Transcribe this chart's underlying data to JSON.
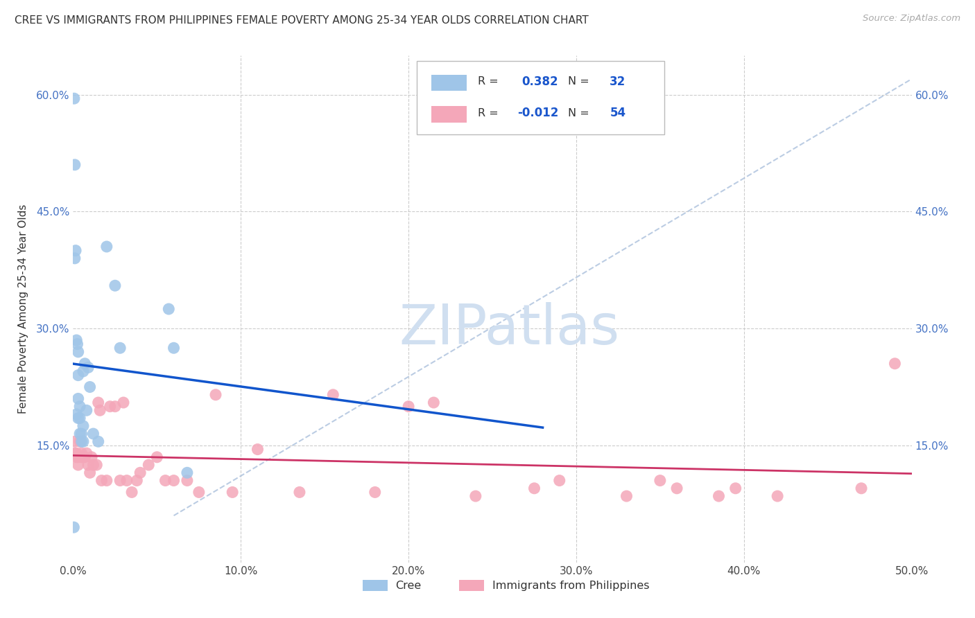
{
  "title": "CREE VS IMMIGRANTS FROM PHILIPPINES FEMALE POVERTY AMONG 25-34 YEAR OLDS CORRELATION CHART",
  "source": "Source: ZipAtlas.com",
  "ylabel": "Female Poverty Among 25-34 Year Olds",
  "xlim": [
    0.0,
    0.5
  ],
  "ylim": [
    0.0,
    0.65
  ],
  "xticks": [
    0.0,
    0.1,
    0.2,
    0.3,
    0.4,
    0.5
  ],
  "xticklabels": [
    "0.0%",
    "10.0%",
    "20.0%",
    "30.0%",
    "40.0%",
    "50.0%"
  ],
  "yticks_left": [
    0.0,
    0.15,
    0.3,
    0.45,
    0.6
  ],
  "yticklabels_left": [
    "",
    "15.0%",
    "30.0%",
    "45.0%",
    "60.0%"
  ],
  "yticks_right": [
    0.15,
    0.3,
    0.45,
    0.6
  ],
  "yticklabels_right": [
    "15.0%",
    "30.0%",
    "45.0%",
    "60.0%"
  ],
  "legend_r1": "0.382",
  "legend_n1": "32",
  "legend_r2": "-0.012",
  "legend_n2": "54",
  "legend_label1": "Cree",
  "legend_label2": "Immigrants from Philippines",
  "cree_color": "#9fc5e8",
  "philippines_color": "#f4a7b9",
  "cree_line_color": "#1155cc",
  "philippines_line_color": "#cc3366",
  "diag_line_color": "#b0c4de",
  "watermark_text": "ZIPatlas",
  "watermark_color": "#d0dff0",
  "background": "#ffffff",
  "grid_color": "#cccccc",
  "cree_x": [
    0.0004,
    0.0006,
    0.001,
    0.001,
    0.0015,
    0.002,
    0.002,
    0.0025,
    0.003,
    0.003,
    0.003,
    0.003,
    0.004,
    0.004,
    0.004,
    0.005,
    0.005,
    0.006,
    0.006,
    0.006,
    0.007,
    0.008,
    0.009,
    0.01,
    0.012,
    0.015,
    0.02,
    0.025,
    0.028,
    0.057,
    0.06,
    0.068
  ],
  "cree_y": [
    0.045,
    0.595,
    0.51,
    0.39,
    0.4,
    0.285,
    0.19,
    0.28,
    0.27,
    0.24,
    0.21,
    0.185,
    0.185,
    0.165,
    0.2,
    0.165,
    0.155,
    0.155,
    0.175,
    0.245,
    0.255,
    0.195,
    0.25,
    0.225,
    0.165,
    0.155,
    0.405,
    0.355,
    0.275,
    0.325,
    0.275,
    0.115
  ],
  "phil_x": [
    0.001,
    0.001,
    0.002,
    0.002,
    0.003,
    0.003,
    0.004,
    0.005,
    0.005,
    0.006,
    0.007,
    0.008,
    0.009,
    0.01,
    0.011,
    0.012,
    0.014,
    0.015,
    0.016,
    0.017,
    0.02,
    0.022,
    0.025,
    0.028,
    0.03,
    0.032,
    0.035,
    0.038,
    0.04,
    0.045,
    0.05,
    0.055,
    0.06,
    0.068,
    0.075,
    0.085,
    0.095,
    0.11,
    0.135,
    0.155,
    0.18,
    0.2,
    0.215,
    0.24,
    0.275,
    0.29,
    0.33,
    0.35,
    0.36,
    0.385,
    0.395,
    0.42,
    0.47,
    0.49
  ],
  "phil_y": [
    0.155,
    0.14,
    0.14,
    0.135,
    0.135,
    0.125,
    0.155,
    0.14,
    0.135,
    0.135,
    0.135,
    0.14,
    0.125,
    0.115,
    0.135,
    0.125,
    0.125,
    0.205,
    0.195,
    0.105,
    0.105,
    0.2,
    0.2,
    0.105,
    0.205,
    0.105,
    0.09,
    0.105,
    0.115,
    0.125,
    0.135,
    0.105,
    0.105,
    0.105,
    0.09,
    0.215,
    0.09,
    0.145,
    0.09,
    0.215,
    0.09,
    0.2,
    0.205,
    0.085,
    0.095,
    0.105,
    0.085,
    0.105,
    0.095,
    0.085,
    0.095,
    0.085,
    0.095,
    0.255
  ]
}
